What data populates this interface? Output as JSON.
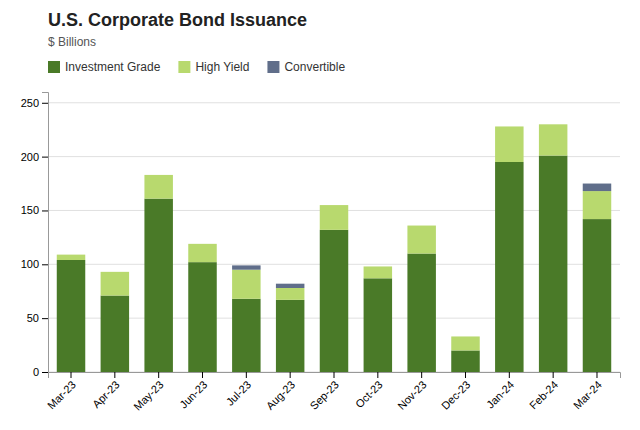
{
  "chart_data": {
    "type": "bar",
    "stacked": true,
    "title": "U.S. Corporate Bond Issuance",
    "subtitle": "$ Billions",
    "categories": [
      "Mar-23",
      "Apr-23",
      "May-23",
      "Jun-23",
      "Jul-23",
      "Aug-23",
      "Sep-23",
      "Oct-23",
      "Nov-23",
      "Dec-23",
      "Jan-24",
      "Feb-24",
      "Mar-24"
    ],
    "series": [
      {
        "name": "Investment Grade",
        "color": "#4a7a28",
        "values": [
          104,
          71,
          161,
          102,
          68,
          67,
          132,
          87,
          110,
          20,
          195,
          201,
          142
        ]
      },
      {
        "name": "High Yield",
        "color": "#b8d96e",
        "values": [
          5,
          22,
          22,
          17,
          27,
          11,
          23,
          11,
          26,
          13,
          33,
          29,
          26
        ]
      },
      {
        "name": "Convertible",
        "color": "#606e8a",
        "values": [
          0,
          0,
          0,
          0,
          4,
          4,
          0,
          0,
          0,
          0,
          0,
          0,
          7
        ]
      }
    ],
    "ylim": [
      0,
      260
    ],
    "yticks": [
      0,
      50,
      100,
      150,
      200,
      250
    ],
    "grid": true,
    "legend": "top"
  }
}
